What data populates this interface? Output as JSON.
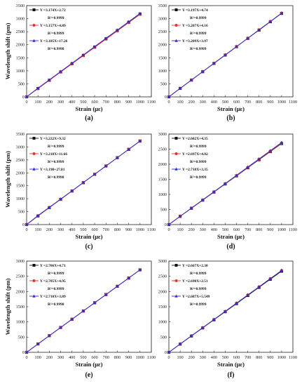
{
  "figure": {
    "panels": [
      {
        "label": "(a)",
        "chart_data": {
          "type": "line",
          "xlabel": "Strain (με)",
          "ylabel": "Wavelength shift (pm)",
          "xlim": [
            0,
            1100
          ],
          "ylim": [
            0,
            3500
          ],
          "xticks": [
            0,
            100,
            200,
            300,
            400,
            500,
            600,
            700,
            800,
            900,
            1000,
            1100
          ],
          "yticks": [
            0,
            500,
            1000,
            1500,
            2000,
            2500,
            3000,
            3500
          ],
          "x": [
            0,
            100,
            200,
            300,
            400,
            500,
            600,
            700,
            800,
            900,
            1000
          ],
          "legend_position": "top-left",
          "series": [
            {
              "legend": "Y =3.174X+2.72",
              "r2": "R²=0.9999",
              "color": "#111111",
              "marker": "square",
              "values": [
                0,
                320,
                636,
                955,
                1272,
                1589,
                1906,
                2224,
                2541,
                2859,
                3176
              ]
            },
            {
              "legend": "Y =3.157X+4.89",
              "r2": "R²=0.9999",
              "color": "#e8322a",
              "marker": "circle",
              "values": [
                0,
                320,
                636,
                952,
                1267,
                1583,
                1899,
                2215,
                2530,
                2846,
                3162
              ]
            },
            {
              "legend": "Y =3.185X+17.26",
              "r2": "R²=0.9998",
              "color": "#2b2bd9",
              "marker": "triangle",
              "values": [
                0,
                336,
                654,
                973,
                1291,
                1610,
                1928,
                2247,
                2565,
                2884,
                3202
              ]
            }
          ]
        }
      },
      {
        "label": "(b)",
        "chart_data": {
          "type": "line",
          "xlabel": "Strain (με)",
          "ylabel": "",
          "xlim": [
            0,
            1100
          ],
          "ylim": [
            0,
            3500
          ],
          "xticks": [
            0,
            100,
            200,
            300,
            400,
            500,
            600,
            700,
            800,
            900,
            1000,
            1100
          ],
          "yticks": [
            0,
            500,
            1000,
            1500,
            2000,
            2500,
            3000,
            3500
          ],
          "x": [
            0,
            100,
            200,
            300,
            400,
            500,
            600,
            700,
            800,
            900,
            1000
          ],
          "legend_position": "top-left",
          "series": [
            {
              "legend": "Y =3.197X+4.74",
              "r2": "R²=0.9999",
              "color": "#111111",
              "marker": "square",
              "values": [
                0,
                324,
                644,
                964,
                1283,
                1603,
                1923,
                2243,
                2562,
                2882,
                3202
              ]
            },
            {
              "legend": "Y =3.207X+4.16",
              "r2": "R²=0.9999",
              "color": "#e8322a",
              "marker": "circle",
              "values": [
                0,
                325,
                646,
                966,
                1287,
                1608,
                1928,
                2249,
                2570,
                2890,
                3211
              ]
            },
            {
              "legend": "Y =3.209X+3.97",
              "r2": "R²=0.9999",
              "color": "#2b2bd9",
              "marker": "triangle",
              "values": [
                0,
                325,
                646,
                967,
                1288,
                1608,
                1929,
                2250,
                2571,
                2892,
                3213
              ]
            }
          ]
        }
      },
      {
        "label": "(c)",
        "chart_data": {
          "type": "line",
          "xlabel": "Strain (με)",
          "ylabel": "Wavelength shift (pm)",
          "xlim": [
            0,
            1100
          ],
          "ylim": [
            0,
            3500
          ],
          "xticks": [
            0,
            100,
            200,
            300,
            400,
            500,
            600,
            700,
            800,
            900,
            1000,
            1100
          ],
          "yticks": [
            0,
            500,
            1000,
            1500,
            2000,
            2500,
            3000,
            3500
          ],
          "x": [
            0,
            100,
            200,
            300,
            400,
            500,
            600,
            700,
            800,
            900,
            1000
          ],
          "legend_position": "top-left",
          "series": [
            {
              "legend": "Y =3.222X+9.32",
              "r2": "R²=0.9999",
              "color": "#111111",
              "marker": "square",
              "values": [
                0,
                332,
                654,
                976,
                1298,
                1620,
                1943,
                2265,
                2587,
                2909,
                3231
              ]
            },
            {
              "legend": "Y =3.218X+11.66",
              "r2": "R²=0.9999",
              "color": "#e8322a",
              "marker": "circle",
              "values": [
                0,
                333,
                655,
                977,
                1299,
                1621,
                1943,
                2264,
                2586,
                2908,
                3230
              ]
            },
            {
              "legend": "Y =3.198+27.81",
              "r2": "R²=0.9998",
              "color": "#2b2bd9",
              "marker": "triangle",
              "values": [
                0,
                348,
                667,
                987,
                1307,
                1627,
                1947,
                2266,
                2586,
                2906,
                3226
              ]
            }
          ]
        }
      },
      {
        "label": "(d)",
        "chart_data": {
          "type": "line",
          "xlabel": "Strain (με)",
          "ylabel": "",
          "xlim": [
            0,
            1100
          ],
          "ylim": [
            0,
            3000
          ],
          "xticks": [
            0,
            100,
            200,
            300,
            400,
            500,
            600,
            700,
            800,
            900,
            1000,
            1100
          ],
          "yticks": [
            0,
            500,
            1000,
            1500,
            2000,
            2500,
            3000
          ],
          "x": [
            0,
            100,
            200,
            300,
            400,
            500,
            600,
            700,
            800,
            900,
            1000
          ],
          "legend_position": "top-left",
          "series": [
            {
              "legend": "Y =2.682X+4.35",
              "r2": "R²=0.9999",
              "color": "#111111",
              "marker": "square",
              "values": [
                0,
                273,
                541,
                809,
                1077,
                1345,
                1614,
                1882,
                2150,
                2418,
                2686
              ]
            },
            {
              "legend": "Y =2.697X+4.02",
              "r2": "R²=0.9999",
              "color": "#e8322a",
              "marker": "circle",
              "values": [
                0,
                274,
                543,
                813,
                1083,
                1353,
                1622,
                1892,
                2162,
                2431,
                2701
              ]
            },
            {
              "legend": "Y =2.718X+3.35",
              "r2": "R²=0.9999",
              "color": "#2b2bd9",
              "marker": "triangle",
              "values": [
                0,
                275,
                547,
                819,
                1091,
                1362,
                1634,
                1906,
                2178,
                2450,
                2721
              ]
            }
          ]
        }
      },
      {
        "label": "(e)",
        "chart_data": {
          "type": "line",
          "xlabel": "Strain (με)",
          "ylabel": "Wavelength shift (pm)",
          "xlim": [
            0,
            1100
          ],
          "ylim": [
            0,
            3000
          ],
          "xticks": [
            0,
            100,
            200,
            300,
            400,
            500,
            600,
            700,
            800,
            900,
            1000,
            1100
          ],
          "yticks": [
            0,
            500,
            1000,
            1500,
            2000,
            2500,
            3000
          ],
          "x": [
            0,
            100,
            200,
            300,
            400,
            500,
            600,
            700,
            800,
            900,
            1000
          ],
          "legend_position": "top-left",
          "series": [
            {
              "legend": "Y =2.706X+4.71",
              "r2": "R²=0.9999",
              "color": "#111111",
              "marker": "square",
              "values": [
                0,
                275,
                546,
                817,
                1087,
                1358,
                1628,
                1899,
                2170,
                2440,
                2711
              ]
            },
            {
              "legend": "Y =2.705X+4.95",
              "r2": "R²=0.9999",
              "color": "#e8322a",
              "marker": "circle",
              "values": [
                0,
                275,
                546,
                816,
                1087,
                1357,
                1628,
                1898,
                2169,
                2439,
                2710
              ]
            },
            {
              "legend": "Y =2.710X+3.89",
              "r2": "R²=0.9998",
              "color": "#2b2bd9",
              "marker": "triangle",
              "values": [
                0,
                275,
                546,
                817,
                1088,
                1359,
                1630,
                1901,
                2172,
                2443,
                2714
              ]
            }
          ]
        }
      },
      {
        "label": "(f)",
        "chart_data": {
          "type": "line",
          "xlabel": "Strain (με)",
          "ylabel": "",
          "xlim": [
            0,
            1100
          ],
          "ylim": [
            0,
            3000
          ],
          "xticks": [
            0,
            100,
            200,
            300,
            400,
            500,
            600,
            700,
            800,
            900,
            1000,
            1100
          ],
          "yticks": [
            0,
            500,
            1000,
            1500,
            2000,
            2500,
            3000
          ],
          "x": [
            0,
            100,
            200,
            300,
            400,
            500,
            600,
            700,
            800,
            900,
            1000
          ],
          "legend_position": "top-left",
          "series": [
            {
              "legend": "Y =2.667X+2.38",
              "r2": "R²=0.9999",
              "color": "#111111",
              "marker": "square",
              "values": [
                0,
                269,
                536,
                802,
                1069,
                1336,
                1602,
                1869,
                2136,
                2403,
                2669
              ]
            },
            {
              "legend": "Y =2.690X+2.51",
              "r2": "R²=0.9999",
              "color": "#e8322a",
              "marker": "circle",
              "values": [
                0,
                272,
                541,
                810,
                1079,
                1348,
                1617,
                1886,
                2155,
                2424,
                2693
              ]
            },
            {
              "legend": "Y =2.687X+5.549",
              "r2": "R²=0.9999",
              "color": "#2b2bd9",
              "marker": "triangle",
              "values": [
                0,
                274,
                543,
                812,
                1080,
                1349,
                1618,
                1886,
                2155,
                2424,
                2692
              ]
            }
          ]
        }
      }
    ]
  }
}
